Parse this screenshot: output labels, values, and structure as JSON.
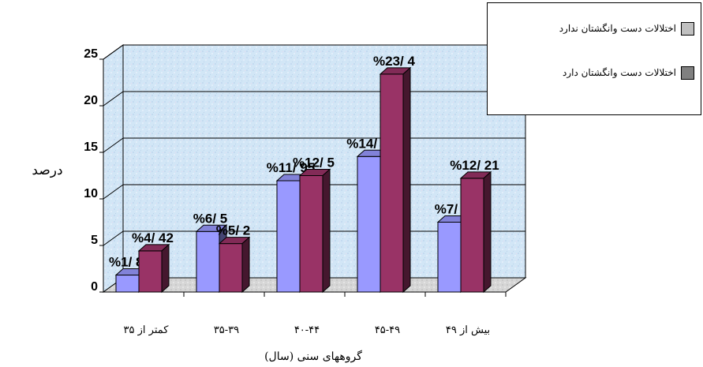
{
  "chart_data": {
    "type": "bar",
    "ylabel": "درصد",
    "xlabel": "گروههای سنی (سال)",
    "ylim": [
      0,
      25
    ],
    "yticks": [
      "0",
      "5",
      "10",
      "15",
      "20",
      "25"
    ],
    "categories": [
      "کمتر از ۳۵",
      "۳۵-۳۹",
      "۴۰-۴۴",
      "۴۵-۴۹",
      "بیش از ۴۹"
    ],
    "series": [
      {
        "name": "اختلالات دست وانگشتان ندارد",
        "color": "#9999ff",
        "values": [
          1.82,
          6.5,
          11.95,
          14.55,
          7.5
        ],
        "labels": [
          "%1/ 82",
          "%6/ 5",
          "%11/ 95",
          "%14/ 55",
          "%7/ 5"
        ]
      },
      {
        "name": "اختلالات دست وانگشتان دارد",
        "color": "#993366",
        "values": [
          4.42,
          5.2,
          12.5,
          23.4,
          12.21
        ],
        "labels": [
          "%4/ 42",
          "%5/ 2",
          "%12/ 5",
          "%23/ 4",
          "%12/ 21"
        ]
      }
    ],
    "legend_swatches": [
      "#c0c0c0",
      "#808080"
    ],
    "legend_position": "top-right",
    "grid": true
  }
}
